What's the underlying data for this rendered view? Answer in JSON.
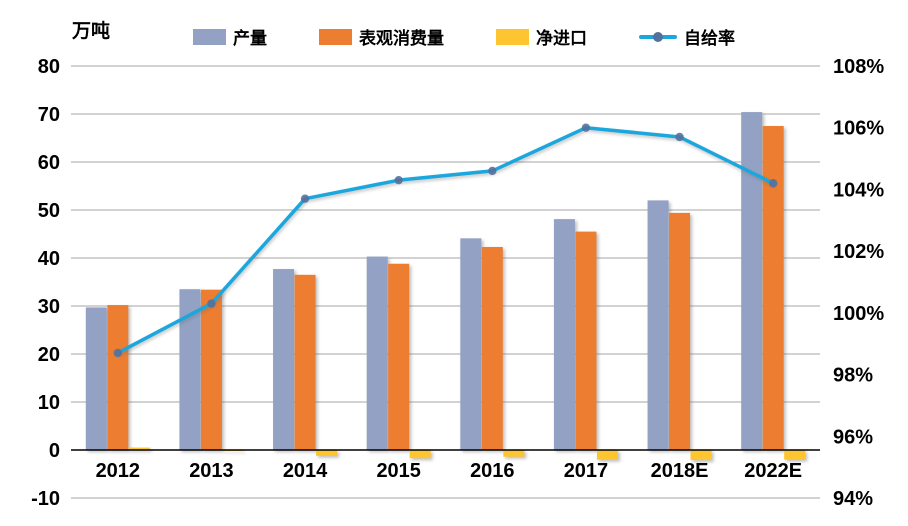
{
  "chart_data": {
    "type": "bar",
    "subtype": "grouped bars with secondary-axis line",
    "unit_label": "万吨",
    "categories": [
      "2012",
      "2013",
      "2014",
      "2015",
      "2016",
      "2017",
      "2018E",
      "2022E"
    ],
    "series": [
      {
        "name": "产量",
        "type": "bar",
        "axis": "left",
        "color": "#93A2C4",
        "values": [
          29.7,
          33.5,
          37.7,
          40.3,
          44.1,
          48.1,
          52.0,
          70.4
        ]
      },
      {
        "name": "表观消费量",
        "type": "bar",
        "axis": "left",
        "color": "#ED7D31",
        "values": [
          30.2,
          33.4,
          36.5,
          38.8,
          42.3,
          45.5,
          49.4,
          67.5
        ]
      },
      {
        "name": "净进口",
        "type": "bar",
        "axis": "left",
        "color": "#FDC52F",
        "values": [
          0.5,
          -0.2,
          -1.2,
          -1.7,
          -1.4,
          -2.0,
          -2.1,
          -2.0
        ]
      },
      {
        "name": "自给率",
        "type": "line",
        "axis": "right",
        "color": "#1BA7DE",
        "marker_color": "#54719C",
        "values": [
          98.7,
          100.3,
          103.7,
          104.3,
          104.6,
          106.0,
          105.7,
          104.2
        ]
      }
    ],
    "left_axis": {
      "min": -10,
      "max": 80,
      "tick_step": 10,
      "ticks": [
        "80",
        "70",
        "60",
        "50",
        "40",
        "30",
        "20",
        "10",
        "0",
        "-10"
      ]
    },
    "right_axis": {
      "min": 94,
      "max": 108,
      "tick_step": 2,
      "ticks": [
        "108%",
        "106%",
        "104%",
        "102%",
        "100%",
        "98%",
        "96%",
        "94%"
      ]
    },
    "grid": "on",
    "gridline_color": "#A6A6A6",
    "zero_line_color": "#000000",
    "legend_position": "top",
    "background_color": "#FFFFFF"
  }
}
